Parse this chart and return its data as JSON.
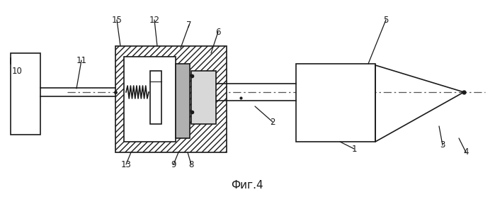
{
  "bg_color": "#ffffff",
  "lc": "#1a1a1a",
  "title": "Фиг.4",
  "title_fontsize": 11,
  "figw": 6.99,
  "figh": 2.78,
  "dpi": 100
}
